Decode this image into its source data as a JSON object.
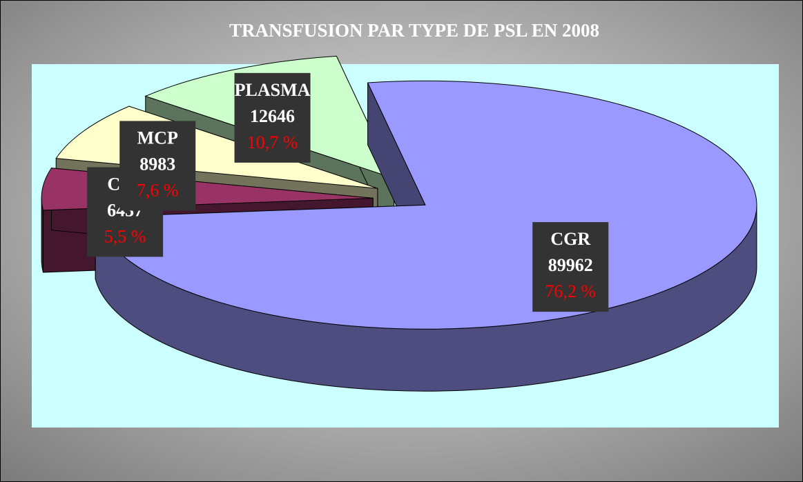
{
  "chart_data": {
    "type": "pie",
    "title": "TRANSFUSION PAR TYPE DE PSL EN 2008",
    "categories": [
      "CGR",
      "CPA",
      "MCP",
      "PLASMA"
    ],
    "values": [
      89962,
      6437,
      8983,
      12646
    ],
    "percentage_labels": [
      "76,2 %",
      "5,5 %",
      "7,6 %",
      "10,7 %"
    ],
    "colors": [
      "#9999ff",
      "#993366",
      "#ffffcc",
      "#ccffcc"
    ]
  }
}
